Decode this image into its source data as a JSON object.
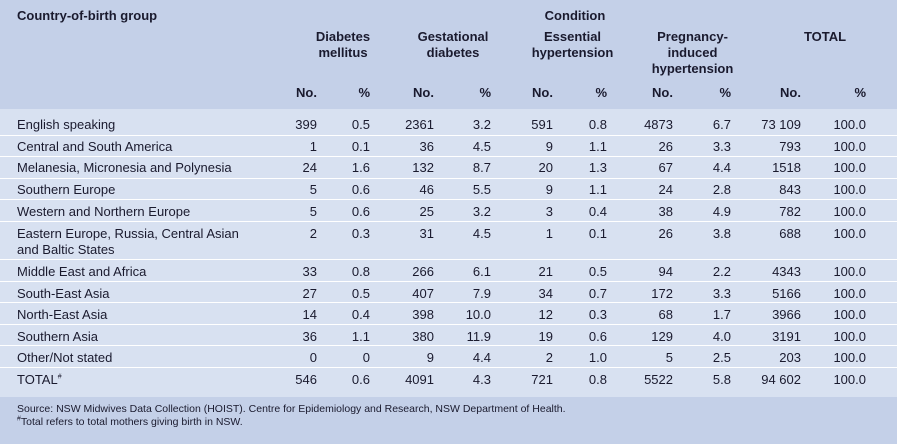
{
  "header": {
    "group_label": "Country-of-birth group",
    "condition_label": "Condition",
    "columns": [
      {
        "line1": "Diabetes",
        "line2": "mellitus",
        "line3": ""
      },
      {
        "line1": "Gestational",
        "line2": "diabetes",
        "line3": ""
      },
      {
        "line1": "Essential",
        "line2": "hypertension",
        "line3": ""
      },
      {
        "line1": "Pregnancy-",
        "line2": "induced",
        "line3": "hypertension"
      },
      {
        "line1": "TOTAL",
        "line2": "",
        "line3": ""
      }
    ],
    "sub_no": "No.",
    "sub_pct": "%"
  },
  "rows": [
    {
      "label": "English speaking",
      "label2": "",
      "v": [
        "399",
        "0.5",
        "2361",
        "3.2",
        "591",
        "0.8",
        "4873",
        "6.7",
        "73 109",
        "100.0"
      ]
    },
    {
      "label": "Central and South America",
      "label2": "",
      "v": [
        "1",
        "0.1",
        "36",
        "4.5",
        "9",
        "1.1",
        "26",
        "3.3",
        "793",
        "100.0"
      ]
    },
    {
      "label": "Melanesia, Micronesia and Polynesia",
      "label2": "",
      "v": [
        "24",
        "1.6",
        "132",
        "8.7",
        "20",
        "1.3",
        "67",
        "4.4",
        "1518",
        "100.0"
      ]
    },
    {
      "label": "Southern Europe",
      "label2": "",
      "v": [
        "5",
        "0.6",
        "46",
        "5.5",
        "9",
        "1.1",
        "24",
        "2.8",
        "843",
        "100.0"
      ]
    },
    {
      "label": "Western and Northern Europe",
      "label2": "",
      "v": [
        "5",
        "0.6",
        "25",
        "3.2",
        "3",
        "0.4",
        "38",
        "4.9",
        "782",
        "100.0"
      ]
    },
    {
      "label": "Eastern Europe, Russia, Central Asian",
      "label2": "and Baltic States",
      "v": [
        "2",
        "0.3",
        "31",
        "4.5",
        "1",
        "0.1",
        "26",
        "3.8",
        "688",
        "100.0"
      ]
    },
    {
      "label": "Middle East and Africa",
      "label2": "",
      "v": [
        "33",
        "0.8",
        "266",
        "6.1",
        "21",
        "0.5",
        "94",
        "2.2",
        "4343",
        "100.0"
      ]
    },
    {
      "label": "South-East Asia",
      "label2": "",
      "v": [
        "27",
        "0.5",
        "407",
        "7.9",
        "34",
        "0.7",
        "172",
        "3.3",
        "5166",
        "100.0"
      ]
    },
    {
      "label": "North-East Asia",
      "label2": "",
      "v": [
        "14",
        "0.4",
        "398",
        "10.0",
        "12",
        "0.3",
        "68",
        "1.7",
        "3966",
        "100.0"
      ]
    },
    {
      "label": "Southern Asia",
      "label2": "",
      "v": [
        "36",
        "1.1",
        "380",
        "11.9",
        "19",
        "0.6",
        "129",
        "4.0",
        "3191",
        "100.0"
      ]
    },
    {
      "label": "Other/Not stated",
      "label2": "",
      "v": [
        "0",
        "0",
        "9",
        "4.4",
        "2",
        "1.0",
        "5",
        "2.5",
        "203",
        "100.0"
      ]
    }
  ],
  "total_row": {
    "label": "TOTAL",
    "mark": "#",
    "v": [
      "546",
      "0.6",
      "4091",
      "4.3",
      "721",
      "0.8",
      "5522",
      "5.8",
      "94 602",
      "100.0"
    ]
  },
  "footnotes": {
    "source": "Source: NSW Midwives Data Collection (HOIST). Centre for Epidemiology and Research, NSW Department of Health.",
    "note_mark": "#",
    "note": "Total refers to total mothers giving birth in NSW."
  }
}
